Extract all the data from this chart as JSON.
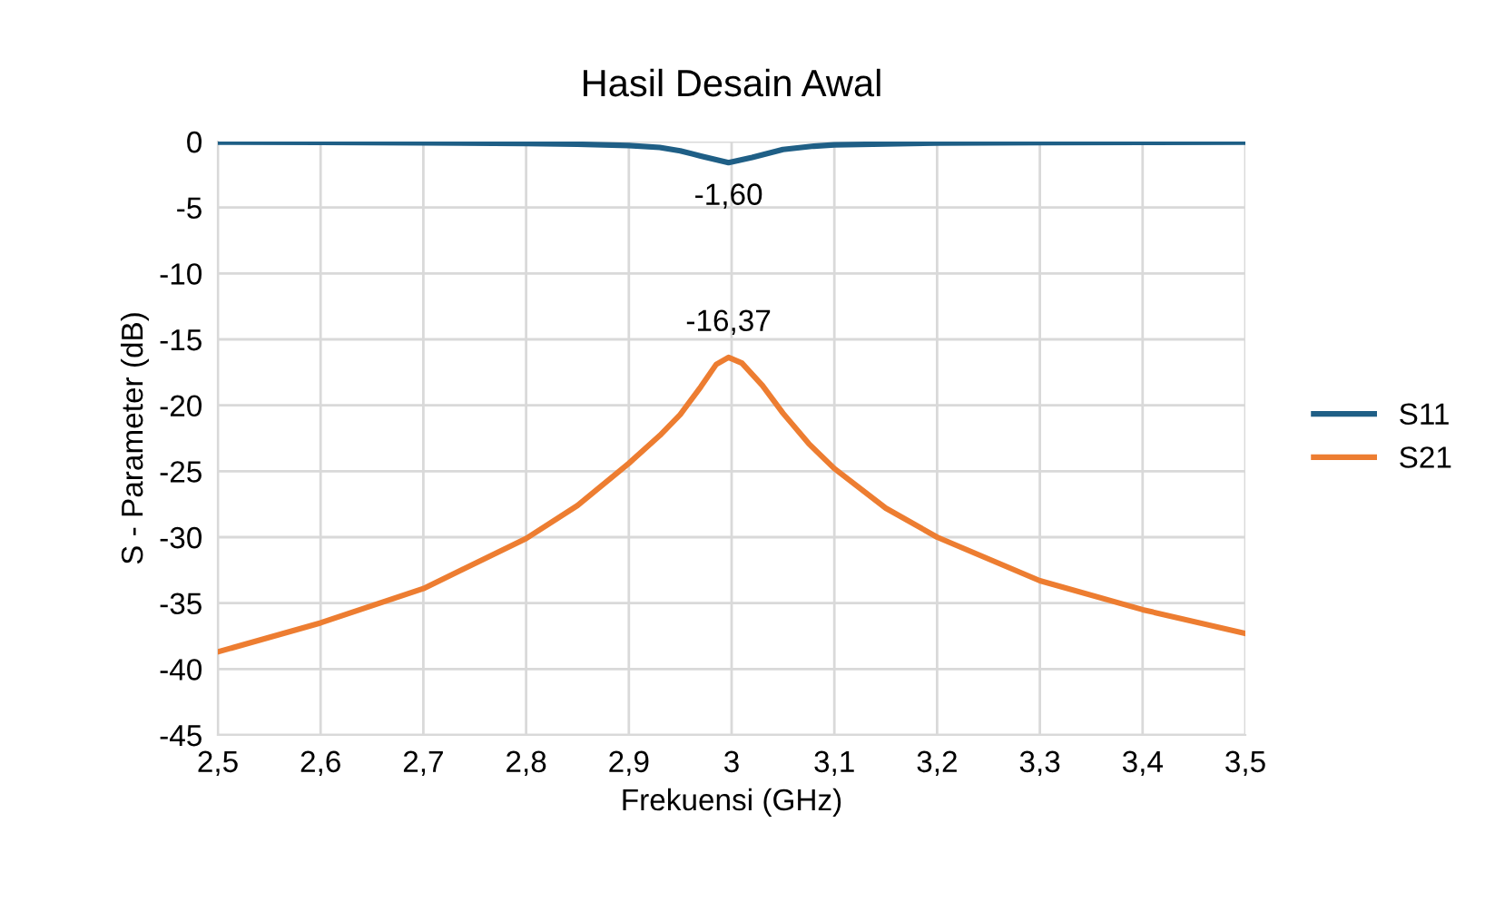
{
  "chart_data": {
    "type": "line",
    "title": "Hasil Desain Awal",
    "xlabel": "Frekuensi (GHz)",
    "ylabel": "S - Parameter (dB)",
    "xlim": [
      2.5,
      3.5
    ],
    "xticks": [
      {
        "value": 2.5,
        "label": "2,5"
      },
      {
        "value": 2.6,
        "label": "2,6"
      },
      {
        "value": 2.7,
        "label": "2,7"
      },
      {
        "value": 2.8,
        "label": "2,8"
      },
      {
        "value": 2.9,
        "label": "2,9"
      },
      3,
      {
        "value": 3.1,
        "label": "3,1"
      },
      {
        "value": 3.2,
        "label": "3,2"
      },
      {
        "value": 3.3,
        "label": "3,3"
      },
      {
        "value": 3.4,
        "label": "3,4"
      },
      {
        "value": 3.5,
        "label": "3,5"
      }
    ],
    "ylim": [
      -45,
      0
    ],
    "yticks": [
      -45,
      -40,
      -35,
      -30,
      -25,
      -20,
      -15,
      -10,
      -5,
      0
    ],
    "grid": true,
    "legend": "right",
    "marker": "none",
    "line_style": "solid",
    "series": [
      {
        "name": "S11",
        "color": "#1f5f86",
        "x": [
          2.5,
          2.6,
          2.7,
          2.8,
          2.85,
          2.9,
          2.93,
          2.95,
          2.97,
          2.997,
          3.02,
          3.05,
          3.08,
          3.1,
          3.2,
          3.3,
          3.4,
          3.5
        ],
        "values": [
          -0.05,
          -0.07,
          -0.1,
          -0.15,
          -0.2,
          -0.3,
          -0.45,
          -0.7,
          -1.1,
          -1.6,
          -1.2,
          -0.6,
          -0.35,
          -0.25,
          -0.12,
          -0.08,
          -0.06,
          -0.05
        ],
        "value_labels": [
          null,
          null,
          null,
          null,
          null,
          null,
          null,
          null,
          null,
          "-1,60",
          null,
          null,
          null,
          null,
          null,
          null,
          null,
          null
        ]
      },
      {
        "name": "S21",
        "color": "#ed7d31",
        "x": [
          2.5,
          2.6,
          2.7,
          2.8,
          2.85,
          2.9,
          2.93,
          2.95,
          2.97,
          2.985,
          2.997,
          3.01,
          3.03,
          3.05,
          3.075,
          3.1,
          3.15,
          3.2,
          3.3,
          3.4,
          3.5
        ],
        "values": [
          -38.7,
          -36.5,
          -33.9,
          -30.1,
          -27.6,
          -24.4,
          -22.3,
          -20.7,
          -18.6,
          -16.9,
          -16.37,
          -16.8,
          -18.5,
          -20.6,
          -22.9,
          -24.8,
          -27.8,
          -30.0,
          -33.3,
          -35.5,
          -37.3
        ],
        "value_labels": [
          null,
          null,
          null,
          null,
          null,
          null,
          null,
          null,
          null,
          null,
          "-16,37",
          null,
          null,
          null,
          null,
          null,
          null,
          null,
          null,
          null,
          null
        ]
      }
    ]
  }
}
